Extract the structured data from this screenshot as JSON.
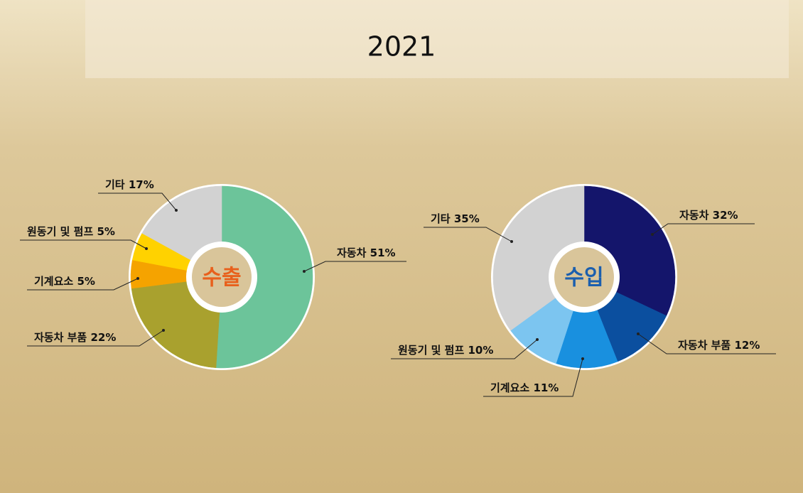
{
  "title": "2021",
  "chart_data": [
    {
      "type": "donut",
      "title": "수출",
      "title_color": "#e8601c",
      "categories": [
        "자동차",
        "자동차 부품",
        "기계요소",
        "원동기 및 펌프",
        "기타"
      ],
      "values": [
        51,
        22,
        5,
        5,
        17
      ],
      "value_labels": [
        "51%",
        "22%",
        "5%",
        "5%",
        "17%"
      ],
      "colors": [
        "#6cc49a",
        "#a9a12e",
        "#f5a300",
        "#ffd200",
        "#d2d2d2"
      ]
    },
    {
      "type": "donut",
      "title": "수입",
      "title_color": "#1b5fae",
      "categories": [
        "자동차",
        "자동차 부품",
        "기계요소",
        "원동기 및 펌프",
        "기타"
      ],
      "values": [
        32,
        12,
        11,
        10,
        35
      ],
      "value_labels": [
        "32%",
        "12%",
        "11%",
        "10%",
        "35%"
      ],
      "colors": [
        "#14156b",
        "#0b4f9f",
        "#1990df",
        "#7cc5f0",
        "#d2d2d2"
      ]
    }
  ]
}
